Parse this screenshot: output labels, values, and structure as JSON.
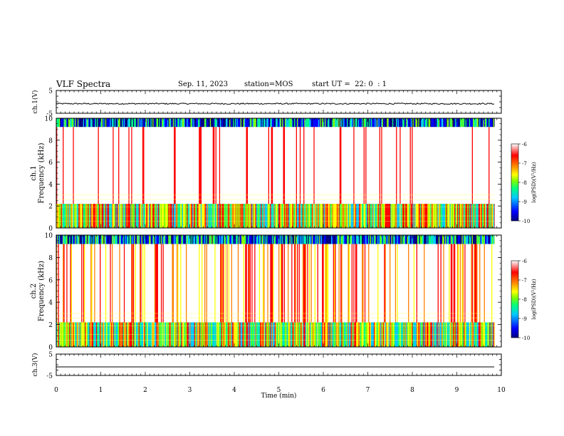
{
  "header": {
    "title": "VLF Spectra",
    "date": "Sep. 11, 2023",
    "station": "station=MOS",
    "start": "start UT =  22: 0  : 1"
  },
  "chart_data": [
    {
      "type": "line",
      "panel": "ch1-voltage",
      "ylabel": "ch.1(V)",
      "ylim": [
        -5,
        5
      ],
      "yticks": [
        "5",
        "-5"
      ],
      "x_range_min": [
        0,
        9.85
      ],
      "series": [
        {
          "values_description_level": -0.8
        }
      ]
    },
    {
      "type": "heatmap",
      "panel": "ch1-spectrogram",
      "ylabel": "ch.1\nFrequency (kHz)",
      "ylim": [
        0,
        10
      ],
      "yticks": [
        "0",
        "2",
        "4",
        "6",
        "8",
        "10"
      ],
      "x_range_min": [
        0,
        9.85
      ],
      "colorbar": {
        "label": "log(PSD)(V²/Hz)",
        "ticks": [
          "-6",
          "-7",
          "-8",
          "-9",
          "-10"
        ],
        "range": [
          -10,
          -6
        ]
      }
    },
    {
      "type": "heatmap",
      "panel": "ch2-spectrogram",
      "ylabel": "ch.2\nFrequency (kHz)",
      "ylim": [
        0,
        10
      ],
      "yticks": [
        "0",
        "2",
        "4",
        "6",
        "8",
        "10"
      ],
      "x_range_min": [
        0,
        9.85
      ],
      "colorbar": {
        "label": "log(PSD)(V²/Hz)",
        "ticks": [
          "-6",
          "-7",
          "-8",
          "-9",
          "-10"
        ],
        "range": [
          -10,
          -6
        ]
      }
    },
    {
      "type": "line",
      "panel": "ch3-voltage",
      "ylabel": "ch.3(V)",
      "ylim": [
        -5,
        5
      ],
      "yticks": [
        "5",
        "-5"
      ],
      "x_range_min": [
        0,
        9.85
      ],
      "series": [
        {
          "values_description_level": -1.0
        }
      ]
    }
  ],
  "xaxis": {
    "label": "Time (min)",
    "ticks": [
      "0",
      "1",
      "2",
      "3",
      "4",
      "5",
      "6",
      "7",
      "8",
      "9",
      "10"
    ],
    "xlim": [
      0,
      10
    ]
  },
  "colors": {
    "colormap": [
      "#000080",
      "#0000ff",
      "#00c8ff",
      "#00ff80",
      "#80ff00",
      "#ffff00",
      "#ff8000",
      "#ff0000",
      "#ffffff"
    ]
  }
}
